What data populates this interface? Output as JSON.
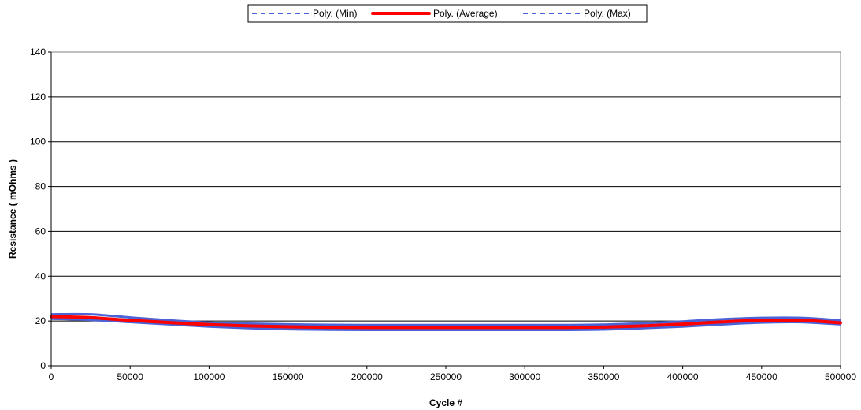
{
  "chart_data": {
    "type": "line",
    "title": "",
    "xlabel": "Cycle #",
    "ylabel": "Resistance ( mOhms )",
    "xlim": [
      0,
      500000
    ],
    "ylim": [
      0,
      140
    ],
    "x_ticks": [
      "0",
      "50000",
      "100000",
      "150000",
      "200000",
      "250000",
      "300000",
      "350000",
      "400000",
      "450000",
      "500000"
    ],
    "y_ticks": [
      "0",
      "20",
      "40",
      "60",
      "80",
      "100",
      "120",
      "140"
    ],
    "grid": true,
    "legend_position": "top",
    "x": [
      0,
      25000,
      50000,
      75000,
      100000,
      125000,
      150000,
      175000,
      200000,
      225000,
      250000,
      275000,
      300000,
      325000,
      350000,
      375000,
      400000,
      425000,
      450000,
      475000,
      500000
    ],
    "series": [
      {
        "name": "Poly. (Min)",
        "color": "#4b63d6",
        "style": "dashed",
        "values": [
          21,
          20.5,
          19.5,
          18.5,
          17.5,
          16.8,
          16.3,
          16.1,
          16,
          16,
          16,
          16,
          16,
          16,
          16.2,
          16.8,
          17.5,
          18.5,
          19.3,
          19.5,
          18.5
        ]
      },
      {
        "name": "Poly. (Average)",
        "color": "#ff0000",
        "style": "solid",
        "values": [
          22,
          21.5,
          20.3,
          19.3,
          18.4,
          17.8,
          17.4,
          17.2,
          17.1,
          17.1,
          17.1,
          17.1,
          17.1,
          17.1,
          17.3,
          17.8,
          18.6,
          19.6,
          20.3,
          20.3,
          19.2
        ]
      },
      {
        "name": "Poly. (Max)",
        "color": "#4b63d6",
        "style": "dashed",
        "values": [
          23,
          23,
          21.6,
          20.3,
          19.3,
          18.8,
          18.5,
          18.3,
          18.2,
          18.2,
          18.2,
          18.2,
          18.2,
          18.2,
          18.4,
          19,
          19.8,
          20.8,
          21.4,
          21.4,
          20.3
        ]
      }
    ]
  }
}
